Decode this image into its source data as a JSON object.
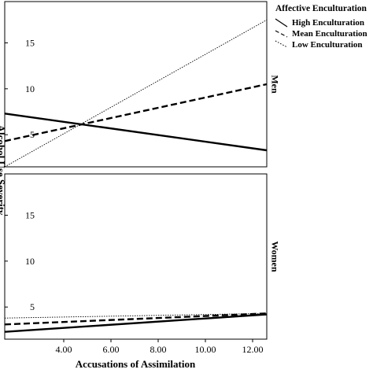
{
  "chart_data": {
    "type": "line",
    "xlabel": "Accusations of Assimilation",
    "ylabel": "Alcohol Use Severity",
    "xlim": [
      1.5,
      12.6
    ],
    "ylim": [
      1.5,
      19.5
    ],
    "x_ticks": [
      4.0,
      6.0,
      8.0,
      10.0,
      12.0
    ],
    "x_tick_labels": [
      "4.00",
      "6.00",
      "8.00",
      "10.00",
      "12.00"
    ],
    "y_ticks": [
      5,
      10,
      15
    ],
    "y_tick_labels": [
      "5",
      "10",
      "15"
    ],
    "legend": {
      "title": "Affective Enculturation",
      "placement": "top-right",
      "entries": [
        {
          "label": "High Enculturation",
          "style": "solid"
        },
        {
          "label": "Mean Enculturation",
          "style": "dashed"
        },
        {
          "label": "Low Enculturation",
          "style": "dotted"
        }
      ]
    },
    "panels": [
      {
        "strip_label": "Men",
        "series": [
          {
            "name": "High Enculturation",
            "style": "solid",
            "x": [
              1.5,
              12.6
            ],
            "y": [
              7.3,
              3.3
            ]
          },
          {
            "name": "Mean Enculturation",
            "style": "dashed",
            "x": [
              1.5,
              12.6
            ],
            "y": [
              4.3,
              10.5
            ]
          },
          {
            "name": "Low Enculturation",
            "style": "dotted",
            "x": [
              1.5,
              12.6
            ],
            "y": [
              1.5,
              17.5
            ]
          }
        ]
      },
      {
        "strip_label": "Women",
        "series": [
          {
            "name": "High Enculturation",
            "style": "solid",
            "x": [
              1.5,
              12.6
            ],
            "y": [
              2.3,
              4.2
            ]
          },
          {
            "name": "Mean Enculturation",
            "style": "dashed",
            "x": [
              1.5,
              12.6
            ],
            "y": [
              3.1,
              4.3
            ]
          },
          {
            "name": "Low Enculturation",
            "style": "dotted",
            "x": [
              1.5,
              12.6
            ],
            "y": [
              3.8,
              4.3
            ]
          }
        ]
      }
    ]
  }
}
